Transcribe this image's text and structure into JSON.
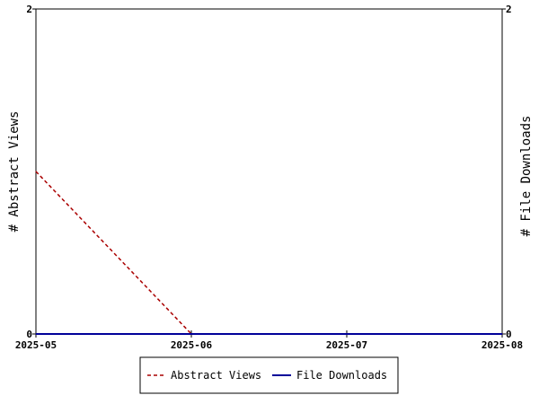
{
  "chart_data": {
    "type": "line",
    "x": [
      "2025-05",
      "2025-06",
      "2025-07",
      "2025-08"
    ],
    "series": [
      {
        "name": "Abstract Views",
        "axis": "left",
        "color": "#aa0000",
        "style": "dashed",
        "values": [
          1,
          0,
          0,
          0
        ]
      },
      {
        "name": "File Downloads",
        "axis": "right",
        "color": "#000099",
        "style": "solid",
        "values": [
          0,
          0,
          0,
          0
        ]
      }
    ],
    "ylabel_left": "# Abstract Views",
    "ylabel_right": "# File Downloads",
    "ylim_left": [
      0,
      2
    ],
    "ylim_right": [
      0,
      2
    ],
    "yticks_left": [
      "0",
      "2"
    ],
    "yticks_right": [
      "0",
      "2"
    ],
    "grid": false,
    "legend": "bottom"
  }
}
